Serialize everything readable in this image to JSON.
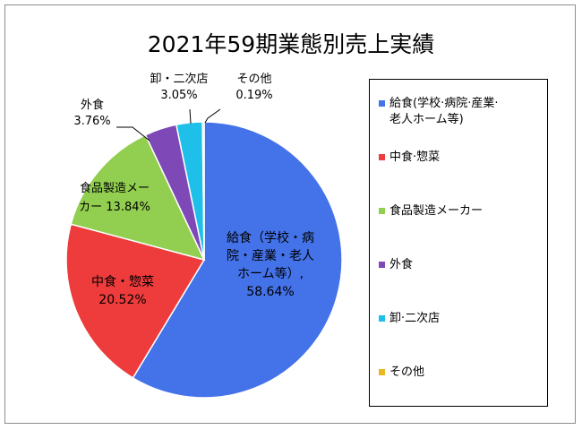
{
  "chart_data": {
    "type": "pie",
    "title": "2021年59期業態別売上実績",
    "slices": [
      {
        "name": "給食(学校・病院・産業・老人ホーム等)",
        "value": 58.64,
        "label": [
          "給食（学校・病",
          "院・産業・老人",
          "ホーム等）,",
          "58.64%"
        ],
        "color": "#4472e8"
      },
      {
        "name": "中食・惣菜",
        "value": 20.52,
        "label": [
          "中食・惣菜",
          "20.52%"
        ],
        "color": "#ee3b3b"
      },
      {
        "name": "食品製造メーカー",
        "value": 13.84,
        "label": [
          "食品製造メー",
          "カー 13.84%"
        ],
        "color": "#92cf50"
      },
      {
        "name": "外食",
        "value": 3.76,
        "label": [
          "外食",
          "3.76%"
        ],
        "color": "#7e49b6"
      },
      {
        "name": "卸・二次店",
        "value": 3.05,
        "label": [
          "卸・二次店",
          "3.05%"
        ],
        "color": "#1ebfe8"
      },
      {
        "name": "その他",
        "value": 0.19,
        "label": [
          "その他",
          "0.19%"
        ],
        "color": "#e8b820"
      }
    ],
    "legend_position": "right",
    "legend": [
      [
        "給食(学校·病院·産業·",
        "老人ホーム等)"
      ],
      [
        "中食·惣菜"
      ],
      [
        "食品製造メーカー"
      ],
      [
        "外食"
      ],
      [
        "卸·二次店"
      ],
      [
        "その他"
      ]
    ]
  }
}
